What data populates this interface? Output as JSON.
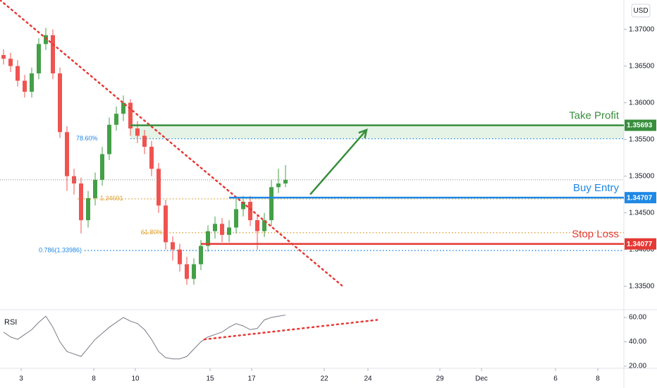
{
  "chart_data": {
    "type": "candlestick",
    "currency": "USD",
    "up_color": "#43a047",
    "down_color": "#ef5350",
    "xlim": [
      0,
      88.5
    ],
    "ylim": [
      1.3319,
      1.374
    ],
    "xticks": [
      {
        "value": 3,
        "label": "3"
      },
      {
        "value": 13.3,
        "label": "8"
      },
      {
        "value": 19.2,
        "label": "10"
      },
      {
        "value": 29.8,
        "label": "15"
      },
      {
        "value": 35.7,
        "label": "17"
      },
      {
        "value": 46,
        "label": "22"
      },
      {
        "value": 52.2,
        "label": "24"
      },
      {
        "value": 62.4,
        "label": "29"
      },
      {
        "value": 68.3,
        "label": "Dec"
      },
      {
        "value": 78.8,
        "label": "6"
      },
      {
        "value": 84.8,
        "label": "8"
      }
    ],
    "yticks": [
      {
        "value": 1.37,
        "label": "1.37000"
      },
      {
        "value": 1.365,
        "label": "1.36500"
      },
      {
        "value": 1.36,
        "label": "1.36000"
      },
      {
        "value": 1.355,
        "label": "1.35500"
      },
      {
        "value": 1.35,
        "label": "1.35000"
      },
      {
        "value": 1.345,
        "label": "1.34500"
      },
      {
        "value": 1.34,
        "label": "1.34000"
      },
      {
        "value": 1.335,
        "label": "1.33500"
      }
    ],
    "open": [
      1.3665,
      1.366,
      1.365,
      1.363,
      1.3615,
      1.364,
      1.368,
      1.3692,
      1.364,
      1.356,
      1.35,
      1.349,
      1.344,
      1.347,
      1.3495,
      1.353,
      1.357,
      1.3585,
      1.36,
      1.3565,
      1.3555,
      1.354,
      1.351,
      1.346,
      1.341,
      1.34,
      1.338,
      1.336,
      1.338,
      1.3405,
      1.3425,
      1.3435,
      1.342,
      1.343,
      1.3455,
      1.3465,
      1.344,
      1.3425,
      1.344,
      1.3485,
      1.349
    ],
    "high": [
      1.3673,
      1.3668,
      1.3658,
      1.3638,
      1.3648,
      1.3688,
      1.3702,
      1.37,
      1.3648,
      1.3568,
      1.351,
      1.3498,
      1.348,
      1.3505,
      1.354,
      1.358,
      1.3595,
      1.361,
      1.3605,
      1.3575,
      1.3563,
      1.3548,
      1.3518,
      1.3468,
      1.3418,
      1.3408,
      1.339,
      1.3388,
      1.3413,
      1.3433,
      1.3445,
      1.3443,
      1.344,
      1.347,
      1.3473,
      1.3473,
      1.3448,
      1.345,
      1.3495,
      1.351,
      1.3515
    ],
    "low": [
      1.3652,
      1.3642,
      1.3622,
      1.3607,
      1.3607,
      1.3632,
      1.3672,
      1.3632,
      1.3552,
      1.348,
      1.3475,
      1.3422,
      1.343,
      1.346,
      1.3487,
      1.3522,
      1.3562,
      1.3575,
      1.3555,
      1.3545,
      1.353,
      1.35,
      1.345,
      1.34,
      1.3385,
      1.337,
      1.3352,
      1.3352,
      1.3372,
      1.3397,
      1.3415,
      1.341,
      1.341,
      1.3422,
      1.3445,
      1.3432,
      1.34,
      1.3417,
      1.3432,
      1.3477,
      1.3485
    ],
    "close": [
      1.366,
      1.365,
      1.363,
      1.3615,
      1.364,
      1.368,
      1.3692,
      1.364,
      1.356,
      1.35,
      1.349,
      1.344,
      1.347,
      1.3495,
      1.353,
      1.357,
      1.3585,
      1.36,
      1.3565,
      1.3555,
      1.354,
      1.351,
      1.346,
      1.341,
      1.34,
      1.338,
      1.336,
      1.338,
      1.3405,
      1.3425,
      1.3435,
      1.342,
      1.343,
      1.3455,
      1.3465,
      1.344,
      1.3425,
      1.344,
      1.3485,
      1.349,
      1.3495
    ],
    "levels": [
      {
        "name": "Take Profit",
        "value": 1.35693,
        "color": "#388e3c",
        "start": 18.5
      },
      {
        "name": "Buy Entry",
        "value": 1.34707,
        "color": "#1e88e5",
        "start": 32.5
      },
      {
        "name": "Stop Loss",
        "value": 1.34077,
        "color": "#e53935",
        "start": 28.5
      }
    ],
    "zone": [
      1.35693,
      1.3551
    ],
    "fib": [
      {
        "text": "78.60%",
        "price": 1.3551,
        "x": 10.8,
        "line_from": 18.5,
        "color": "#1e88e5"
      },
      {
        "text": "1.34691",
        "price": 1.34691,
        "x": 14.2,
        "line_from": 11,
        "color": "#e0a030"
      },
      {
        "text": "61.80%",
        "price": 1.3423,
        "x": 20,
        "line_from": 20,
        "color": "#e0a030"
      },
      {
        "text": "0.786(1.33986)",
        "price": 1.33986,
        "x": 5.5,
        "line_from": 12,
        "color": "#1e88e5"
      }
    ],
    "trendline": [
      [
        0,
        1.374
      ],
      [
        48.5,
        1.3351
      ]
    ],
    "arrow": [
      [
        44,
        1.3475
      ],
      [
        52,
        1.3563
      ]
    ],
    "rsi": {
      "label": "RSI",
      "ylim": [
        18.3,
        65.8
      ],
      "yticks": [
        {
          "value": 60,
          "label": "60.00"
        },
        {
          "value": 40,
          "label": "40.00"
        },
        {
          "value": 20,
          "label": "20.00"
        }
      ],
      "values": [
        48,
        44,
        42,
        46,
        50,
        56,
        61,
        52,
        40,
        32,
        30,
        28,
        35,
        42,
        47,
        52,
        56,
        60,
        57,
        55,
        50,
        42,
        32,
        27,
        26,
        26,
        28,
        34,
        40,
        44,
        46,
        48,
        52,
        55,
        53,
        50,
        51,
        58,
        60,
        61,
        62
      ],
      "trendline": [
        [
          29,
          42
        ],
        [
          53.5,
          58
        ]
      ]
    }
  }
}
